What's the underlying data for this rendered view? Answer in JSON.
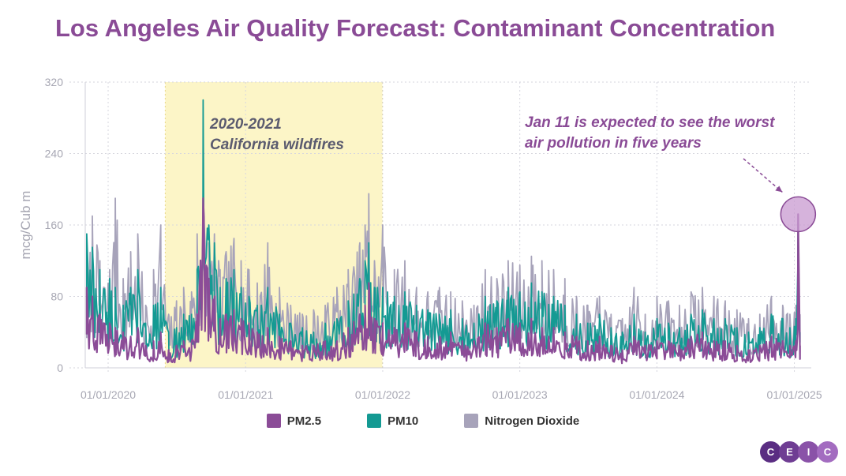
{
  "title": "Los Angeles Air Quality Forecast: Contaminant Concentration",
  "logo": {
    "letters": [
      "C",
      "E",
      "I",
      "C"
    ],
    "colors": [
      "#5a2d82",
      "#6f3d93",
      "#8a52a8",
      "#a36cc0"
    ]
  },
  "colors": {
    "PM2.5": "#8b4c97",
    "PM10": "#149a93",
    "Nitrogen Dioxide": "#a7a3ba",
    "highlight_fill": "#fcf5c7",
    "bubble": "#c89ad0",
    "title": "#8a4b96"
  },
  "annotations": {
    "wildfires": {
      "line1": "2020-2021",
      "line2": "California wildfires",
      "start": "2020-06-01",
      "end": "2021-12-31"
    },
    "peak": {
      "line1": "Jan 11 is expected to see the worst",
      "line2": "air pollution in five years",
      "date": "2025-01-11",
      "value": 172
    }
  },
  "chart_data": {
    "type": "line",
    "title": "Los Angeles Air Quality Forecast: Contaminant Concentration",
    "xlabel": "",
    "ylabel": "mcg/Cub m",
    "x_range": [
      "2019-11-01",
      "2025-02-15"
    ],
    "ylim": [
      0,
      320
    ],
    "yticks": [
      0,
      80,
      160,
      240,
      320
    ],
    "xticks": [
      "01/01/2020",
      "01/01/2021",
      "01/01/2022",
      "01/01/2023",
      "01/01/2024",
      "01/01/2025"
    ],
    "xtick_dates": [
      "2020-01-01",
      "2021-01-01",
      "2022-01-01",
      "2023-01-01",
      "2024-01-01",
      "2025-01-01"
    ],
    "grid": true,
    "legend": "bottom",
    "series": [
      {
        "name": "Nitrogen Dioxide",
        "points": [
          [
            "2019-11-05",
            95
          ],
          [
            "2019-11-20",
            170
          ],
          [
            "2019-12-10",
            120
          ],
          [
            "2020-01-05",
            110
          ],
          [
            "2020-01-20",
            190
          ],
          [
            "2020-02-10",
            100
          ],
          [
            "2020-03-01",
            130
          ],
          [
            "2020-03-20",
            150
          ],
          [
            "2020-04-10",
            70
          ],
          [
            "2020-05-01",
            110
          ],
          [
            "2020-05-20",
            160
          ],
          [
            "2020-06-10",
            60
          ],
          [
            "2020-07-01",
            75
          ],
          [
            "2020-07-20",
            90
          ],
          [
            "2020-08-10",
            85
          ],
          [
            "2020-08-25",
            150
          ],
          [
            "2020-09-10",
            200
          ],
          [
            "2020-09-25",
            140
          ],
          [
            "2020-10-10",
            150
          ],
          [
            "2020-10-25",
            110
          ],
          [
            "2020-11-10",
            130
          ],
          [
            "2020-12-01",
            145
          ],
          [
            "2020-12-20",
            120
          ],
          [
            "2021-01-10",
            110
          ],
          [
            "2021-02-01",
            95
          ],
          [
            "2021-03-01",
            140
          ],
          [
            "2021-04-01",
            90
          ],
          [
            "2021-05-01",
            70
          ],
          [
            "2021-06-01",
            60
          ],
          [
            "2021-07-01",
            65
          ],
          [
            "2021-08-01",
            70
          ],
          [
            "2021-09-01",
            90
          ],
          [
            "2021-10-01",
            110
          ],
          [
            "2021-11-01",
            140
          ],
          [
            "2021-11-15",
            160
          ],
          [
            "2021-11-25",
            195
          ],
          [
            "2021-12-10",
            120
          ],
          [
            "2022-01-01",
            160
          ],
          [
            "2022-02-01",
            110
          ],
          [
            "2022-03-01",
            120
          ],
          [
            "2022-04-01",
            90
          ],
          [
            "2022-05-01",
            85
          ],
          [
            "2022-06-01",
            90
          ],
          [
            "2022-07-01",
            85
          ],
          [
            "2022-08-01",
            75
          ],
          [
            "2022-09-01",
            70
          ],
          [
            "2022-10-01",
            110
          ],
          [
            "2022-11-01",
            100
          ],
          [
            "2022-12-01",
            120
          ],
          [
            "2023-01-01",
            115
          ],
          [
            "2023-02-01",
            125
          ],
          [
            "2023-03-01",
            120
          ],
          [
            "2023-04-01",
            110
          ],
          [
            "2023-05-01",
            100
          ],
          [
            "2023-06-01",
            80
          ],
          [
            "2023-07-01",
            70
          ],
          [
            "2023-08-01",
            80
          ],
          [
            "2023-09-01",
            60
          ],
          [
            "2023-10-01",
            55
          ],
          [
            "2023-11-01",
            90
          ],
          [
            "2023-12-01",
            60
          ],
          [
            "2024-01-01",
            80
          ],
          [
            "2024-02-01",
            75
          ],
          [
            "2024-03-01",
            70
          ],
          [
            "2024-04-01",
            85
          ],
          [
            "2024-05-01",
            90
          ],
          [
            "2024-06-01",
            80
          ],
          [
            "2024-07-01",
            75
          ],
          [
            "2024-08-01",
            65
          ],
          [
            "2024-09-01",
            55
          ],
          [
            "2024-10-01",
            60
          ],
          [
            "2024-11-01",
            80
          ],
          [
            "2024-12-01",
            70
          ],
          [
            "2024-12-20",
            60
          ],
          [
            "2025-01-05",
            70
          ],
          [
            "2025-01-11",
            150
          ],
          [
            "2025-01-16",
            60
          ]
        ]
      },
      {
        "name": "PM10",
        "points": [
          [
            "2019-11-05",
            150
          ],
          [
            "2019-11-20",
            135
          ],
          [
            "2019-12-10",
            110
          ],
          [
            "2020-01-05",
            100
          ],
          [
            "2020-01-20",
            90
          ],
          [
            "2020-02-10",
            70
          ],
          [
            "2020-03-01",
            90
          ],
          [
            "2020-03-20",
            110
          ],
          [
            "2020-04-10",
            50
          ],
          [
            "2020-05-01",
            70
          ],
          [
            "2020-05-20",
            90
          ],
          [
            "2020-06-10",
            40
          ],
          [
            "2020-07-01",
            45
          ],
          [
            "2020-07-20",
            60
          ],
          [
            "2020-08-10",
            60
          ],
          [
            "2020-08-25",
            110
          ],
          [
            "2020-09-10",
            300
          ],
          [
            "2020-09-25",
            160
          ],
          [
            "2020-10-10",
            140
          ],
          [
            "2020-10-25",
            90
          ],
          [
            "2020-11-10",
            100
          ],
          [
            "2020-12-01",
            110
          ],
          [
            "2020-12-20",
            90
          ],
          [
            "2021-01-10",
            80
          ],
          [
            "2021-02-01",
            70
          ],
          [
            "2021-03-01",
            90
          ],
          [
            "2021-04-01",
            60
          ],
          [
            "2021-05-01",
            50
          ],
          [
            "2021-06-01",
            45
          ],
          [
            "2021-07-01",
            40
          ],
          [
            "2021-08-01",
            50
          ],
          [
            "2021-09-01",
            55
          ],
          [
            "2021-10-01",
            75
          ],
          [
            "2021-11-01",
            100
          ],
          [
            "2021-11-15",
            120
          ],
          [
            "2021-11-25",
            140
          ],
          [
            "2021-12-10",
            90
          ],
          [
            "2022-01-01",
            90
          ],
          [
            "2022-02-01",
            80
          ],
          [
            "2022-03-01",
            85
          ],
          [
            "2022-04-01",
            70
          ],
          [
            "2022-05-01",
            65
          ],
          [
            "2022-06-01",
            60
          ],
          [
            "2022-07-01",
            65
          ],
          [
            "2022-08-01",
            55
          ],
          [
            "2022-09-01",
            50
          ],
          [
            "2022-10-01",
            80
          ],
          [
            "2022-11-01",
            75
          ],
          [
            "2022-12-01",
            90
          ],
          [
            "2023-01-01",
            85
          ],
          [
            "2023-02-01",
            95
          ],
          [
            "2023-03-01",
            85
          ],
          [
            "2023-04-01",
            80
          ],
          [
            "2023-05-01",
            70
          ],
          [
            "2023-06-01",
            60
          ],
          [
            "2023-07-01",
            50
          ],
          [
            "2023-08-01",
            60
          ],
          [
            "2023-09-01",
            45
          ],
          [
            "2023-10-01",
            40
          ],
          [
            "2023-11-01",
            60
          ],
          [
            "2023-12-01",
            40
          ],
          [
            "2024-01-01",
            55
          ],
          [
            "2024-02-01",
            50
          ],
          [
            "2024-03-01",
            45
          ],
          [
            "2024-04-01",
            60
          ],
          [
            "2024-05-01",
            65
          ],
          [
            "2024-06-01",
            55
          ],
          [
            "2024-07-01",
            55
          ],
          [
            "2024-08-01",
            45
          ],
          [
            "2024-09-01",
            40
          ],
          [
            "2024-10-01",
            45
          ],
          [
            "2024-11-01",
            60
          ],
          [
            "2024-12-01",
            55
          ],
          [
            "2024-12-20",
            45
          ],
          [
            "2025-01-05",
            55
          ],
          [
            "2025-01-11",
            165
          ],
          [
            "2025-01-16",
            40
          ]
        ]
      },
      {
        "name": "PM2.5",
        "points": [
          [
            "2019-11-05",
            90
          ],
          [
            "2019-11-20",
            80
          ],
          [
            "2019-12-10",
            60
          ],
          [
            "2020-01-05",
            50
          ],
          [
            "2020-01-20",
            45
          ],
          [
            "2020-02-10",
            40
          ],
          [
            "2020-03-01",
            35
          ],
          [
            "2020-03-20",
            45
          ],
          [
            "2020-04-10",
            25
          ],
          [
            "2020-05-01",
            30
          ],
          [
            "2020-05-20",
            40
          ],
          [
            "2020-06-10",
            20
          ],
          [
            "2020-07-01",
            25
          ],
          [
            "2020-07-20",
            30
          ],
          [
            "2020-08-10",
            30
          ],
          [
            "2020-08-25",
            60
          ],
          [
            "2020-09-10",
            190
          ],
          [
            "2020-09-25",
            100
          ],
          [
            "2020-10-10",
            80
          ],
          [
            "2020-10-25",
            55
          ],
          [
            "2020-11-10",
            60
          ],
          [
            "2020-12-01",
            65
          ],
          [
            "2020-12-20",
            55
          ],
          [
            "2021-01-10",
            50
          ],
          [
            "2021-02-01",
            40
          ],
          [
            "2021-03-01",
            45
          ],
          [
            "2021-04-01",
            35
          ],
          [
            "2021-05-01",
            30
          ],
          [
            "2021-06-01",
            25
          ],
          [
            "2021-07-01",
            25
          ],
          [
            "2021-08-01",
            30
          ],
          [
            "2021-09-01",
            30
          ],
          [
            "2021-10-01",
            45
          ],
          [
            "2021-11-01",
            60
          ],
          [
            "2021-11-15",
            70
          ],
          [
            "2021-11-25",
            95
          ],
          [
            "2021-12-10",
            55
          ],
          [
            "2022-01-01",
            50
          ],
          [
            "2022-02-01",
            45
          ],
          [
            "2022-03-01",
            50
          ],
          [
            "2022-04-01",
            40
          ],
          [
            "2022-05-01",
            35
          ],
          [
            "2022-06-01",
            35
          ],
          [
            "2022-07-01",
            40
          ],
          [
            "2022-08-01",
            30
          ],
          [
            "2022-09-01",
            30
          ],
          [
            "2022-10-01",
            50
          ],
          [
            "2022-11-01",
            45
          ],
          [
            "2022-12-01",
            55
          ],
          [
            "2023-01-01",
            50
          ],
          [
            "2023-02-01",
            55
          ],
          [
            "2023-03-01",
            45
          ],
          [
            "2023-04-01",
            45
          ],
          [
            "2023-05-01",
            40
          ],
          [
            "2023-06-01",
            35
          ],
          [
            "2023-07-01",
            30
          ],
          [
            "2023-08-01",
            35
          ],
          [
            "2023-09-01",
            25
          ],
          [
            "2023-10-01",
            20
          ],
          [
            "2023-11-01",
            35
          ],
          [
            "2023-12-01",
            25
          ],
          [
            "2024-01-01",
            30
          ],
          [
            "2024-02-01",
            30
          ],
          [
            "2024-03-01",
            25
          ],
          [
            "2024-04-01",
            35
          ],
          [
            "2024-05-01",
            40
          ],
          [
            "2024-06-01",
            30
          ],
          [
            "2024-07-01",
            30
          ],
          [
            "2024-08-01",
            25
          ],
          [
            "2024-09-01",
            20
          ],
          [
            "2024-10-01",
            25
          ],
          [
            "2024-11-01",
            35
          ],
          [
            "2024-12-01",
            30
          ],
          [
            "2024-12-20",
            25
          ],
          [
            "2025-01-05",
            30
          ],
          [
            "2025-01-11",
            172
          ],
          [
            "2025-01-16",
            25
          ]
        ]
      }
    ]
  }
}
